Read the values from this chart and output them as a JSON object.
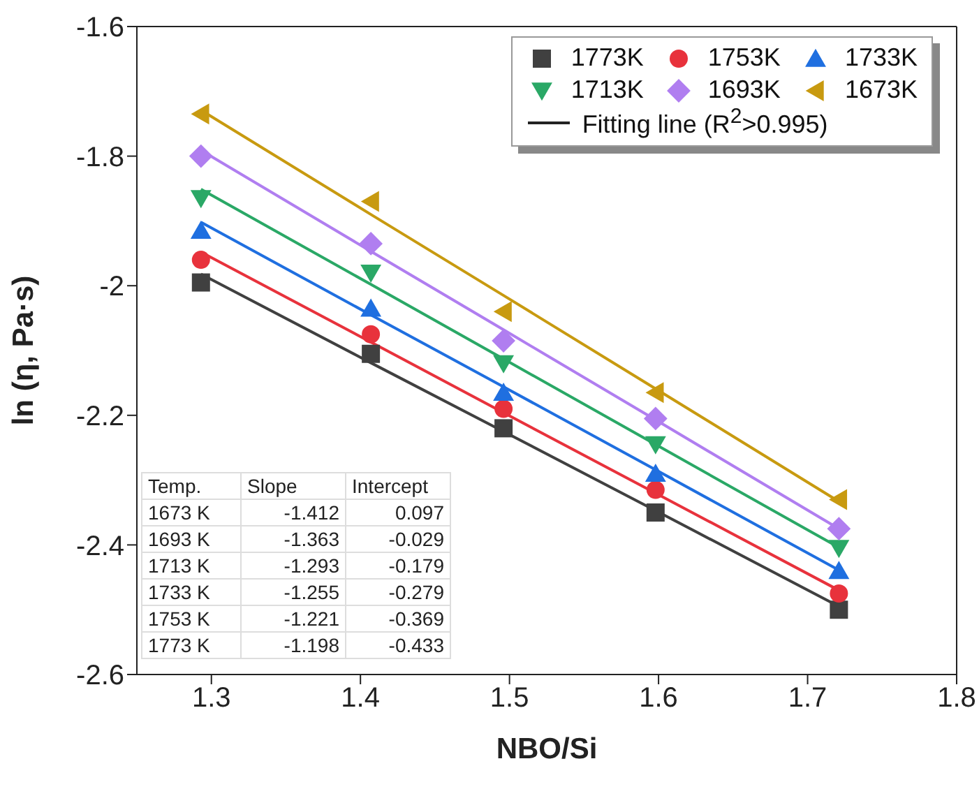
{
  "chart_data": {
    "type": "scatter",
    "xlabel": "NBO/Si",
    "ylabel": "ln (η, Pa·s)",
    "xlim": [
      1.25,
      1.8
    ],
    "xticks": [
      1.3,
      1.4,
      1.5,
      1.6,
      1.7,
      1.8
    ],
    "ylim": [
      -2.6,
      -1.6
    ],
    "yticks": [
      -2.6,
      -2.4,
      -2.2,
      -2,
      -1.8,
      -1.6
    ],
    "legend": "top right",
    "x": [
      1.293,
      1.407,
      1.496,
      1.598,
      1.721
    ],
    "series": [
      {
        "name": "1773K",
        "color": "#404040",
        "marker": "square",
        "values": [
          -1.995,
          -2.105,
          -2.22,
          -2.35,
          -2.5
        ]
      },
      {
        "name": "1753K",
        "color": "#e8323c",
        "marker": "circle",
        "values": [
          -1.96,
          -2.075,
          -2.19,
          -2.315,
          -2.475
        ]
      },
      {
        "name": "1733K",
        "color": "#1f6fe0",
        "marker": "triangle",
        "values": [
          -1.915,
          -2.035,
          -2.165,
          -2.29,
          -2.44
        ]
      },
      {
        "name": "1713K",
        "color": "#2aa866",
        "marker": "triangle-down",
        "values": [
          -1.865,
          -1.98,
          -2.12,
          -2.245,
          -2.405
        ]
      },
      {
        "name": "1693K",
        "color": "#b07ef0",
        "marker": "diamond",
        "values": [
          -1.8,
          -1.935,
          -2.085,
          -2.205,
          -2.375
        ]
      },
      {
        "name": "1673K",
        "color": "#c89a10",
        "marker": "triangle-left",
        "values": [
          -1.735,
          -1.87,
          -2.04,
          -2.165,
          -2.33
        ]
      },
      {
        "type": "line",
        "color": "#c89a10",
        "values": [
          -1.729,
          -1.89,
          -2.015,
          -2.159,
          -2.333
        ]
      },
      {
        "type": "line",
        "color": "#b07ef0",
        "values": [
          -1.791,
          -1.947,
          -2.068,
          -2.207,
          -2.375
        ]
      },
      {
        "type": "line",
        "color": "#2aa866",
        "values": [
          -1.851,
          -1.998,
          -2.113,
          -2.245,
          -2.404
        ]
      },
      {
        "type": "line",
        "color": "#1f6fe0",
        "values": [
          -1.902,
          -2.045,
          -2.156,
          -2.284,
          -2.439
        ]
      },
      {
        "type": "line",
        "color": "#e8323c",
        "values": [
          -1.948,
          -2.087,
          -2.196,
          -2.32,
          -2.47
        ]
      },
      {
        "type": "line",
        "color": "#404040",
        "values": [
          -1.982,
          -2.119,
          -2.225,
          -2.347,
          -2.495
        ]
      }
    ],
    "annotations": [
      "Fitting line (R$^{2}$>0.995)",
      "Temp.",
      "Slope",
      "Intercept",
      "1673 K",
      "-1.412",
      "0.097",
      "1693 K",
      "-1.363",
      "-0.029",
      "1713 K",
      "-1.293",
      "-0.179",
      "1733 K",
      "-1.255",
      "-0.279",
      "1753 K",
      "-1.221",
      "-0.369",
      "1773 K",
      "-1.198",
      "-0.433"
    ]
  }
}
